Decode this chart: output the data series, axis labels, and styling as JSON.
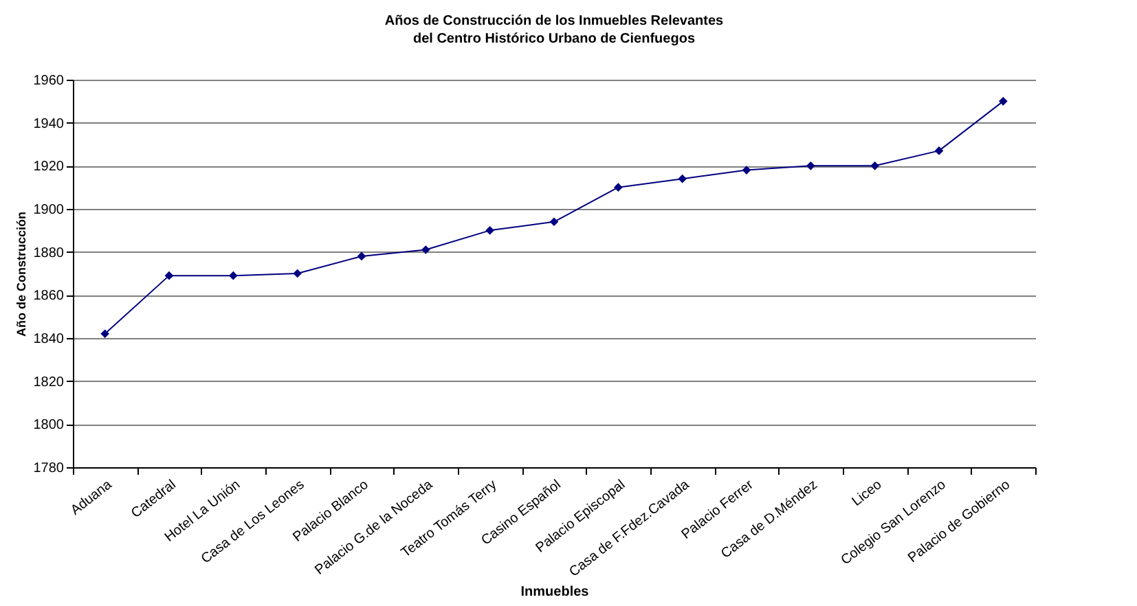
{
  "chart_data": {
    "type": "line",
    "title": "Años de Construcción de los Inmuebles Relevantes",
    "subtitle": "del Centro Histórico Urbano de Cienfuegos",
    "xlabel": "Inmuebles",
    "ylabel": "Año de Construcción",
    "categories": [
      "Aduana",
      "Catedral",
      "Hotel La Unión",
      "Casa de Los Leones",
      "Palacio Blanco",
      "Palacio G.de la Noceda",
      "Teatro Tomás Terry",
      "Casino Español",
      "Palacio Episcopal",
      "Casa de F.Fdez.Cavada",
      "Palacio Ferrer",
      "Casa de D.Méndez",
      "Liceo",
      "Colegio San Lorenzo",
      "Palacio de Gobierno"
    ],
    "series": [
      {
        "color": "#000080",
        "values": [
          1842,
          1869,
          1869,
          1870,
          1878,
          1881,
          1890,
          1894,
          1910,
          1914,
          1918,
          1920,
          1920,
          1927,
          1950
        ]
      }
    ],
    "ylim": [
      1780,
      1960
    ],
    "yticks": [
      1780,
      1800,
      1820,
      1840,
      1860,
      1880,
      1900,
      1920,
      1940,
      1960
    ],
    "grid": "y",
    "marker": "diamond"
  }
}
